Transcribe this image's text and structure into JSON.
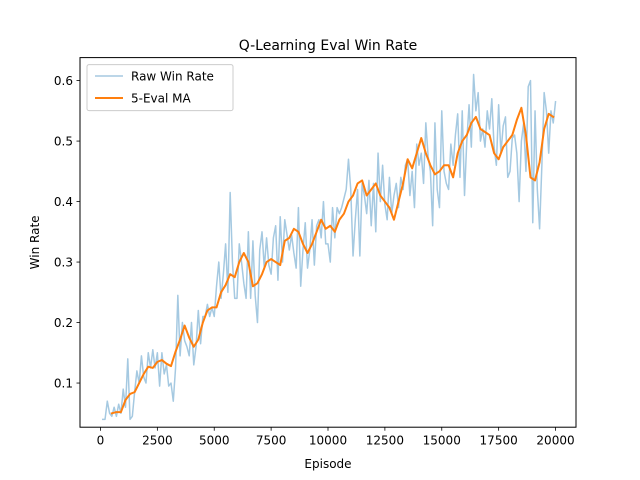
{
  "chart_data": {
    "type": "line",
    "title": "Q-Learning Eval Win Rate",
    "xlabel": "Episode",
    "ylabel": "Win Rate",
    "xlim": [
      -900,
      20900
    ],
    "ylim": [
      0.027,
      0.638
    ],
    "xticks": [
      0,
      2500,
      5000,
      7500,
      10000,
      12500,
      15000,
      17500,
      20000
    ],
    "yticks": [
      0.1,
      0.2,
      0.3,
      0.4,
      0.5,
      0.6
    ],
    "xtick_labels": [
      "0",
      "2500",
      "5000",
      "7500",
      "10000",
      "12500",
      "15000",
      "17500",
      "20000"
    ],
    "ytick_labels": [
      "0.1",
      "0.2",
      "0.3",
      "0.4",
      "0.5",
      "0.6"
    ],
    "grid": false,
    "legend_position": "top-left",
    "series": [
      {
        "name": "Raw Win Rate",
        "color": "#1f77b4",
        "opacity": 0.4,
        "width": 1.5,
        "x": [
          100,
          200,
          300,
          400,
          500,
          600,
          700,
          800,
          900,
          1000,
          1100,
          1200,
          1300,
          1400,
          1500,
          1600,
          1700,
          1800,
          1900,
          2000,
          2100,
          2200,
          2300,
          2400,
          2500,
          2600,
          2700,
          2800,
          2900,
          3000,
          3100,
          3200,
          3300,
          3400,
          3500,
          3600,
          3700,
          3800,
          3900,
          4000,
          4100,
          4200,
          4300,
          4400,
          4500,
          4600,
          4700,
          4800,
          4900,
          5000,
          5100,
          5200,
          5300,
          5400,
          5500,
          5600,
          5700,
          5800,
          5900,
          6000,
          6100,
          6200,
          6300,
          6400,
          6500,
          6600,
          6700,
          6800,
          6900,
          7000,
          7100,
          7200,
          7300,
          7400,
          7500,
          7600,
          7700,
          7800,
          7900,
          8000,
          8100,
          8200,
          8300,
          8400,
          8500,
          8600,
          8700,
          8800,
          8900,
          9000,
          9100,
          9200,
          9300,
          9400,
          9500,
          9600,
          9700,
          9800,
          9900,
          10000,
          10100,
          10200,
          10300,
          10400,
          10500,
          10600,
          10700,
          10800,
          10900,
          11000,
          11100,
          11200,
          11300,
          11400,
          11500,
          11600,
          11700,
          11800,
          11900,
          12000,
          12100,
          12200,
          12300,
          12400,
          12500,
          12600,
          12700,
          12800,
          12900,
          13000,
          13100,
          13200,
          13300,
          13400,
          13500,
          13600,
          13700,
          13800,
          13900,
          14000,
          14100,
          14200,
          14300,
          14400,
          14500,
          14600,
          14700,
          14800,
          14900,
          15000,
          15100,
          15200,
          15300,
          15400,
          15500,
          15600,
          15700,
          15800,
          15900,
          16000,
          16100,
          16200,
          16300,
          16400,
          16500,
          16600,
          16700,
          16800,
          16900,
          17000,
          17100,
          17200,
          17300,
          17400,
          17500,
          17600,
          17700,
          17800,
          17900,
          18000,
          18100,
          18200,
          18300,
          18400,
          18500,
          18600,
          18700,
          18800,
          18900,
          19000,
          19100,
          19200,
          19300,
          19400,
          19500,
          19600,
          19700,
          19800,
          19900,
          20000
        ],
        "y": [
          0.04,
          0.04,
          0.07,
          0.05,
          0.045,
          0.06,
          0.045,
          0.065,
          0.05,
          0.09,
          0.06,
          0.14,
          0.04,
          0.045,
          0.085,
          0.12,
          0.1,
          0.145,
          0.11,
          0.1,
          0.15,
          0.125,
          0.155,
          0.125,
          0.15,
          0.095,
          0.15,
          0.115,
          0.13,
          0.095,
          0.1,
          0.07,
          0.125,
          0.245,
          0.145,
          0.2,
          0.17,
          0.16,
          0.145,
          0.2,
          0.13,
          0.16,
          0.22,
          0.165,
          0.21,
          0.21,
          0.23,
          0.21,
          0.225,
          0.21,
          0.26,
          0.3,
          0.24,
          0.28,
          0.33,
          0.25,
          0.415,
          0.3,
          0.24,
          0.24,
          0.33,
          0.3,
          0.265,
          0.24,
          0.35,
          0.24,
          0.335,
          0.245,
          0.2,
          0.32,
          0.35,
          0.29,
          0.34,
          0.295,
          0.28,
          0.34,
          0.36,
          0.27,
          0.375,
          0.3,
          0.37,
          0.345,
          0.32,
          0.345,
          0.315,
          0.29,
          0.39,
          0.26,
          0.32,
          0.365,
          0.29,
          0.32,
          0.37,
          0.295,
          0.36,
          0.37,
          0.34,
          0.4,
          0.33,
          0.33,
          0.3,
          0.39,
          0.34,
          0.39,
          0.38,
          0.39,
          0.405,
          0.42,
          0.47,
          0.42,
          0.31,
          0.37,
          0.42,
          0.31,
          0.43,
          0.41,
          0.38,
          0.435,
          0.36,
          0.43,
          0.35,
          0.48,
          0.4,
          0.46,
          0.395,
          0.37,
          0.44,
          0.38,
          0.41,
          0.43,
          0.39,
          0.44,
          0.42,
          0.46,
          0.47,
          0.41,
          0.45,
          0.39,
          0.495,
          0.46,
          0.48,
          0.43,
          0.53,
          0.475,
          0.45,
          0.36,
          0.53,
          0.42,
          0.39,
          0.55,
          0.45,
          0.43,
          0.42,
          0.495,
          0.46,
          0.51,
          0.545,
          0.44,
          0.55,
          0.41,
          0.5,
          0.56,
          0.49,
          0.61,
          0.55,
          0.58,
          0.5,
          0.52,
          0.49,
          0.55,
          0.52,
          0.57,
          0.49,
          0.46,
          0.56,
          0.48,
          0.525,
          0.54,
          0.44,
          0.45,
          0.505,
          0.51,
          0.48,
          0.4,
          0.5,
          0.53,
          0.45,
          0.59,
          0.6,
          0.365,
          0.55,
          0.42,
          0.355,
          0.46,
          0.58,
          0.55,
          0.48,
          0.55,
          0.53,
          0.565
        ]
      },
      {
        "name": "5-Eval MA",
        "color": "#ff7f0e",
        "opacity": 1.0,
        "width": 2,
        "x": [
          500,
          700,
          900,
          1100,
          1300,
          1500,
          1700,
          1900,
          2100,
          2300,
          2500,
          2700,
          2900,
          3100,
          3300,
          3500,
          3700,
          3900,
          4100,
          4300,
          4500,
          4700,
          4900,
          5100,
          5300,
          5500,
          5700,
          5900,
          6100,
          6300,
          6500,
          6700,
          6900,
          7100,
          7300,
          7500,
          7700,
          7900,
          8100,
          8300,
          8500,
          8700,
          8900,
          9100,
          9300,
          9500,
          9700,
          9900,
          10100,
          10300,
          10500,
          10700,
          10900,
          11100,
          11300,
          11500,
          11700,
          11900,
          12100,
          12300,
          12500,
          12700,
          12900,
          13100,
          13300,
          13500,
          13700,
          13900,
          14100,
          14300,
          14500,
          14700,
          14900,
          15100,
          15300,
          15500,
          15700,
          15900,
          16100,
          16300,
          16500,
          16700,
          16900,
          17100,
          17300,
          17500,
          17700,
          17900,
          18100,
          18300,
          18500,
          18700,
          18900,
          19100,
          19300,
          19500,
          19700,
          19900
        ],
        "y": [
          0.05,
          0.052,
          0.052,
          0.072,
          0.082,
          0.085,
          0.1,
          0.115,
          0.127,
          0.125,
          0.135,
          0.138,
          0.132,
          0.128,
          0.152,
          0.172,
          0.195,
          0.175,
          0.16,
          0.172,
          0.2,
          0.22,
          0.225,
          0.225,
          0.25,
          0.262,
          0.28,
          0.275,
          0.3,
          0.315,
          0.3,
          0.26,
          0.265,
          0.28,
          0.3,
          0.305,
          0.3,
          0.295,
          0.335,
          0.34,
          0.355,
          0.35,
          0.33,
          0.315,
          0.33,
          0.35,
          0.37,
          0.355,
          0.36,
          0.35,
          0.37,
          0.38,
          0.4,
          0.41,
          0.43,
          0.435,
          0.41,
          0.42,
          0.43,
          0.41,
          0.4,
          0.39,
          0.37,
          0.4,
          0.43,
          0.47,
          0.455,
          0.48,
          0.505,
          0.48,
          0.46,
          0.445,
          0.45,
          0.46,
          0.46,
          0.44,
          0.48,
          0.5,
          0.51,
          0.53,
          0.54,
          0.52,
          0.515,
          0.51,
          0.48,
          0.47,
          0.49,
          0.5,
          0.51,
          0.535,
          0.555,
          0.51,
          0.44,
          0.435,
          0.465,
          0.52,
          0.545,
          0.54
        ]
      }
    ]
  }
}
